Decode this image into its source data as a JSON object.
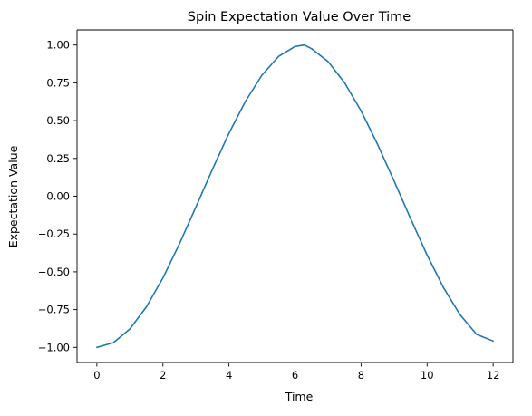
{
  "chart_data": {
    "type": "line",
    "title": "Spin Expectation Value Over Time",
    "xlabel": "Time",
    "ylabel": "Expectation Value",
    "xlim": [
      -0.6,
      12.6
    ],
    "ylim": [
      -1.1,
      1.1
    ],
    "x_ticks": [
      0,
      2,
      4,
      6,
      8,
      10,
      12
    ],
    "x_tick_labels": [
      "0",
      "2",
      "4",
      "6",
      "8",
      "10",
      "12"
    ],
    "y_ticks": [
      -1.0,
      -0.75,
      -0.5,
      -0.25,
      0.0,
      0.25,
      0.5,
      0.75,
      1.0
    ],
    "y_tick_labels": [
      "−1.00",
      "−0.75",
      "−0.50",
      "−0.25",
      "0.00",
      "0.25",
      "0.50",
      "0.75",
      "1.00"
    ],
    "grid": false,
    "series": [
      {
        "color": "#1f77b4",
        "x": [
          0,
          0.5,
          1,
          1.5,
          2,
          2.5,
          3,
          3.5,
          4,
          4.5,
          5,
          5.5,
          6,
          6.283,
          6.5,
          7,
          7.5,
          8,
          8.5,
          9,
          9.5,
          10,
          10.5,
          11,
          11.5,
          12
        ],
        "y": [
          -1.0,
          -0.969,
          -0.878,
          -0.732,
          -0.541,
          -0.315,
          -0.071,
          0.178,
          0.416,
          0.628,
          0.801,
          0.924,
          0.99,
          1.0,
          0.976,
          0.891,
          0.751,
          0.565,
          0.343,
          0.101,
          -0.148,
          -0.389,
          -0.606,
          -0.785,
          -0.914,
          -0.958
        ]
      }
    ]
  }
}
